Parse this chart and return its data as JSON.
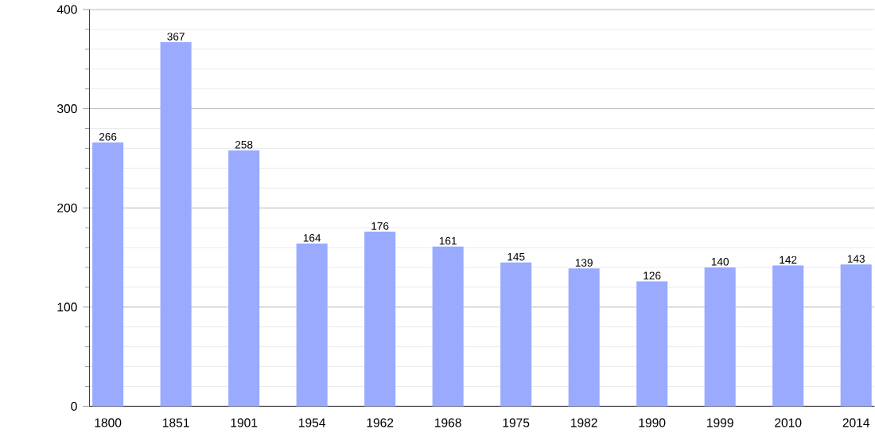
{
  "chart_data": {
    "type": "bar",
    "categories": [
      "1800",
      "1851",
      "1901",
      "1954",
      "1962",
      "1968",
      "1975",
      "1982",
      "1990",
      "1999",
      "2010",
      "2014"
    ],
    "values": [
      266,
      367,
      258,
      164,
      176,
      161,
      145,
      139,
      126,
      140,
      142,
      143
    ],
    "color": "#99aaff",
    "ylim": [
      0,
      400
    ],
    "yticks": [
      0,
      100,
      200,
      300,
      400
    ],
    "grid": "y",
    "data_labels": true
  }
}
